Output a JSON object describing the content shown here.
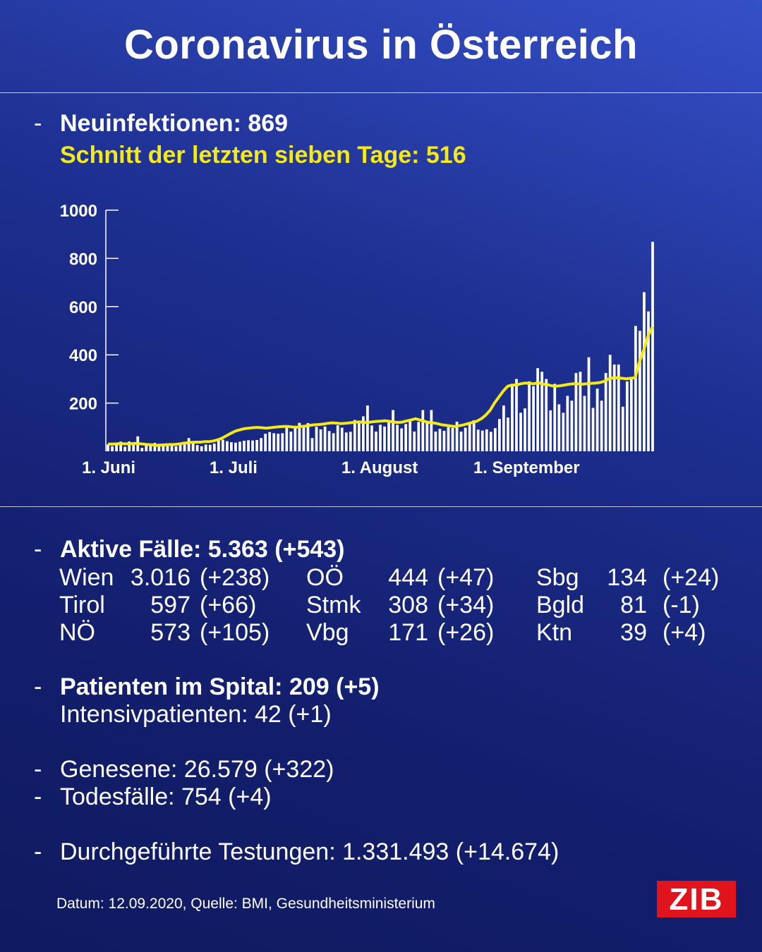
{
  "title": "Coronavirus in Österreich",
  "headline": {
    "new_infections": "Neuinfektionen: 869",
    "seven_day_avg": "Schnitt der letzten sieben Tage: 516"
  },
  "chart_data": {
    "type": "bar",
    "x_ticks": [
      "1. Juni",
      "1. Juli",
      "1. August",
      "1. September"
    ],
    "y_ticks": [
      "200",
      "400",
      "600",
      "800",
      "1000"
    ],
    "ylim": [
      0,
      1000
    ],
    "series": [
      {
        "values": [
          29,
          21,
          29,
          40,
          19,
          41,
          33,
          62,
          14,
          29,
          32,
          35,
          31,
          27,
          28,
          26,
          21,
          34,
          40,
          55,
          38,
          26,
          21,
          28,
          27,
          32,
          45,
          48,
          42,
          38,
          36,
          40,
          44,
          46,
          45,
          47,
          55,
          73,
          80,
          75,
          73,
          75,
          104,
          82,
          97,
          118,
          100,
          117,
          55,
          102,
          91,
          103,
          84,
          75,
          108,
          98,
          78,
          81,
          130,
          121,
          145,
          190,
          107,
          82,
          110,
          103,
          121,
          171,
          110,
          95,
          113,
          125,
          82,
          122,
          171,
          122,
          171,
          82,
          93,
          85,
          100,
          97,
          123,
          82,
          98,
          119,
          129,
          90,
          86,
          91,
          81,
          96,
          134,
          190,
          140,
          280,
          300,
          160,
          178,
          290,
          270,
          345,
          330,
          300,
          170,
          280,
          195,
          160,
          230,
          210,
          325,
          330,
          230,
          390,
          180,
          260,
          210,
          325,
          400,
          360,
          360,
          185,
          290,
          300,
          520,
          500,
          660,
          580,
          869
        ]
      },
      {
        "values": [
          30,
          30,
          31,
          32,
          31,
          31,
          33,
          32,
          30,
          28,
          27,
          25,
          26,
          27,
          28,
          28,
          30,
          33,
          35,
          37,
          38,
          38,
          40,
          40,
          43,
          48,
          55,
          65,
          75,
          84,
          89,
          94,
          96,
          98,
          99,
          98,
          96,
          98,
          100,
          102,
          103,
          103,
          101,
          100,
          103,
          105,
          108,
          110,
          111,
          113,
          116,
          118,
          117,
          115,
          116,
          118,
          120,
          122,
          121,
          119,
          122,
          124,
          125,
          127,
          125,
          121,
          120,
          121,
          126,
          130,
          135,
          130,
          125,
          120,
          118,
          115,
          110,
          108,
          105,
          103,
          106,
          110,
          115,
          120,
          125,
          135,
          150,
          170,
          200,
          225,
          250,
          270,
          275,
          275,
          280,
          283,
          282,
          280,
          285,
          278,
          277,
          272,
          270,
          272,
          275,
          278,
          280,
          280,
          278,
          280,
          282,
          283,
          285,
          290,
          300,
          305,
          305,
          303,
          301,
          303,
          305,
          370,
          420,
          480,
          516
        ]
      }
    ]
  },
  "cases": {
    "header": "Aktive Fälle: 5.363 (+543)",
    "rows": [
      [
        {
          "name": "Wien",
          "value": "3.016",
          "delta": "(+238)"
        },
        {
          "name": "OÖ",
          "value": "444",
          "delta": "(+47)"
        },
        {
          "name": "Sbg",
          "value": "134",
          "delta": "(+24)"
        }
      ],
      [
        {
          "name": "Tirol",
          "value": "597",
          "delta": "(+66)"
        },
        {
          "name": "Stmk",
          "value": "308",
          "delta": "(+34)"
        },
        {
          "name": "Bgld",
          "value": "81",
          "delta": "(-1)"
        }
      ],
      [
        {
          "name": "NÖ",
          "value": "573",
          "delta": "(+105)"
        },
        {
          "name": "Vbg",
          "value": "171",
          "delta": "(+26)"
        },
        {
          "name": "Ktn",
          "value": "39",
          "delta": "(+4)"
        }
      ]
    ]
  },
  "hospital": {
    "header": "Patienten im Spital: 209 (+5)",
    "icu": "Intensivpatienten: 42 (+1)"
  },
  "recovered": "Genesene: 26.579 (+322)",
  "deaths": "Todesfälle: 754 (+4)",
  "tests": "Durchgeführte Testungen: 1.331.493 (+14.674)",
  "footer": "Datum: 12.09.2020, Quelle: BMI, Gesundheitsministerium",
  "logo": "ZIB",
  "colors": {
    "bar": "#ffffff",
    "avg_line": "#f5ea14",
    "logo_bg": "#e1141d",
    "background": "#15226e"
  }
}
